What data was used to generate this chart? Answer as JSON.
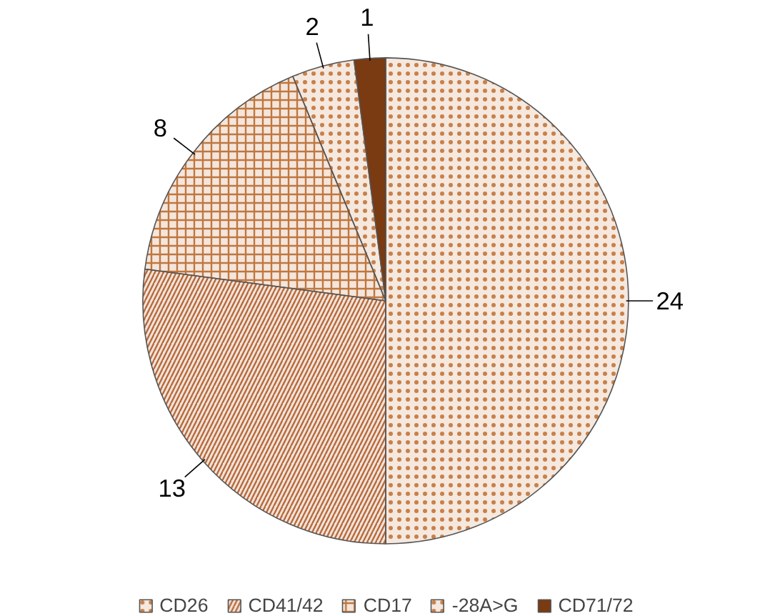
{
  "chart_data": {
    "type": "pie",
    "categories": [
      "CD26",
      "CD41/42",
      "CD17",
      "-28A>G",
      "CD71/72"
    ],
    "values": [
      24,
      13,
      8,
      2,
      1
    ],
    "colors": [
      "#c8804a",
      "#b8693a",
      "#c0773f",
      "#c8804a",
      "#7a3a12"
    ],
    "data_labels": true,
    "legend": "bottom"
  }
}
